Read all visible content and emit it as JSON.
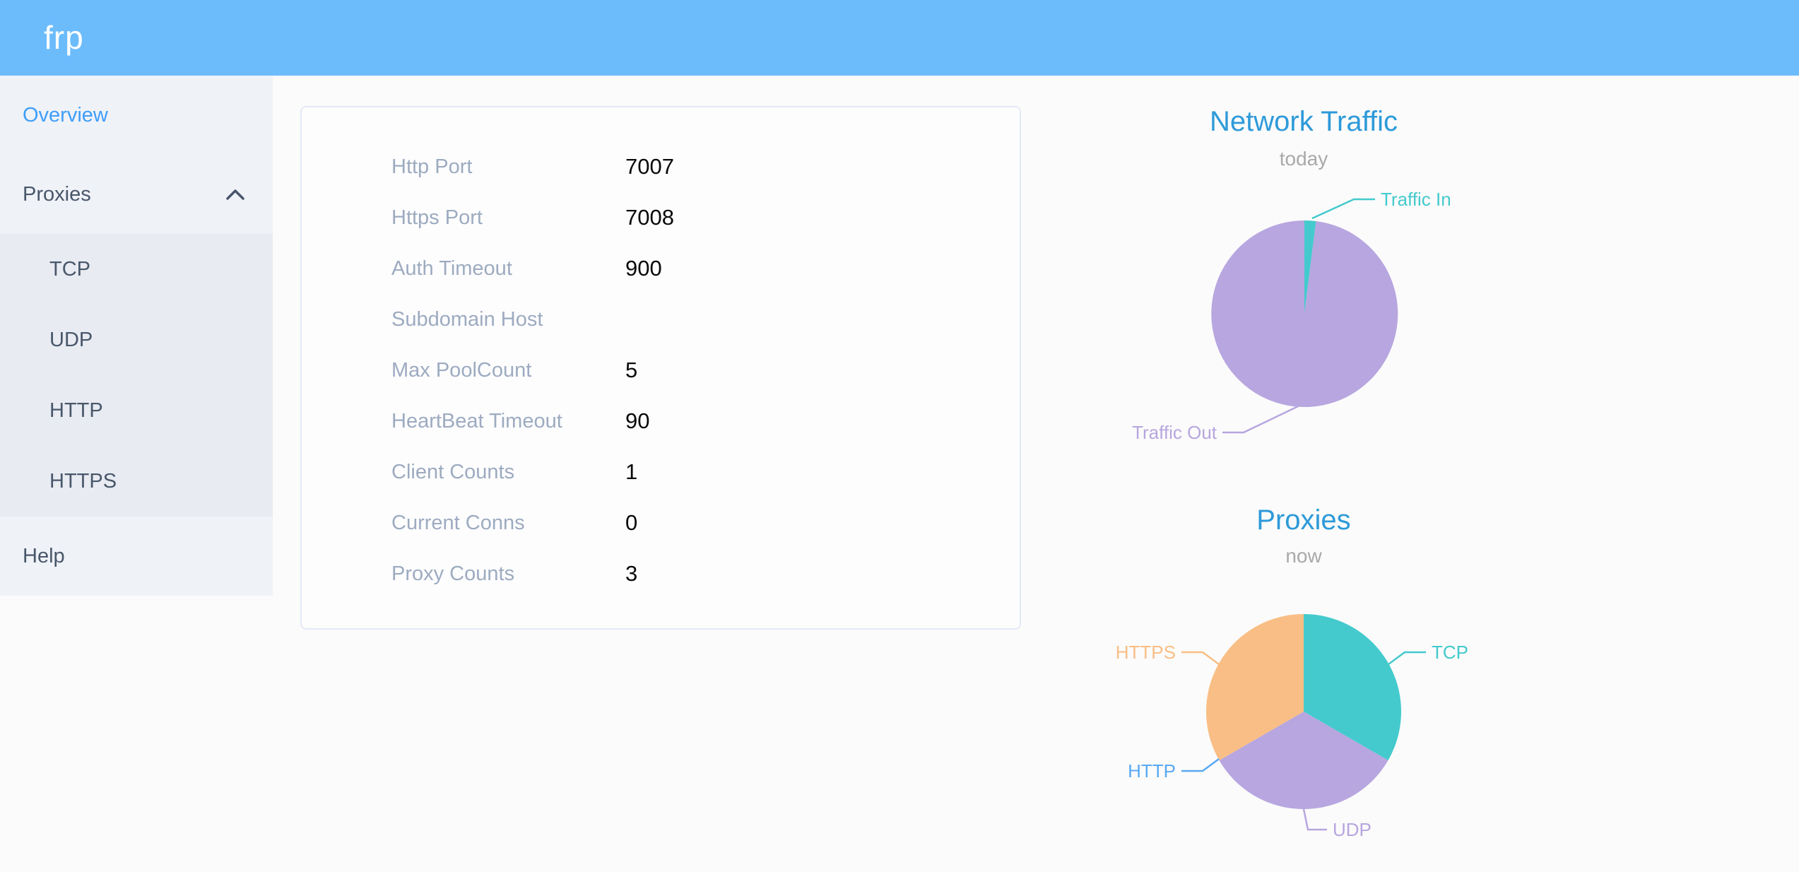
{
  "header": {
    "logo": "frp"
  },
  "sidebar": {
    "items": [
      {
        "label": "Overview",
        "active": true
      },
      {
        "label": "Proxies",
        "expanded": true,
        "children": [
          "TCP",
          "UDP",
          "HTTP",
          "HTTPS"
        ]
      },
      {
        "label": "Help"
      }
    ]
  },
  "config_card": {
    "rows": [
      {
        "label": "Http Port",
        "value": "7007"
      },
      {
        "label": "Https Port",
        "value": "7008"
      },
      {
        "label": "Auth Timeout",
        "value": "900"
      },
      {
        "label": "Subdomain Host",
        "value": ""
      },
      {
        "label": "Max PoolCount",
        "value": "5"
      },
      {
        "label": "HeartBeat Timeout",
        "value": "90"
      },
      {
        "label": "Client Counts",
        "value": "1"
      },
      {
        "label": "Current Conns",
        "value": "0"
      },
      {
        "label": "Proxy Counts",
        "value": "3"
      }
    ]
  },
  "chart_data": [
    {
      "type": "pie",
      "title": "Network Traffic",
      "subtitle": "today",
      "labels_position": "outside",
      "legend": "none",
      "slices": [
        {
          "label": "Traffic In",
          "percent": 2,
          "color": "#44cacd"
        },
        {
          "label": "Traffic Out",
          "percent": 98,
          "color": "#b7a6df"
        }
      ]
    },
    {
      "type": "pie",
      "title": "Proxies",
      "subtitle": "now",
      "labels_position": "outside",
      "legend": "none",
      "slices": [
        {
          "label": "TCP",
          "value": 1,
          "color": "#44cacd"
        },
        {
          "label": "UDP",
          "value": 1,
          "color": "#b7a6df"
        },
        {
          "label": "HTTP",
          "value": 0,
          "color": "#59a9f2"
        },
        {
          "label": "HTTPS",
          "value": 1,
          "color": "#f9be85"
        }
      ]
    }
  ]
}
